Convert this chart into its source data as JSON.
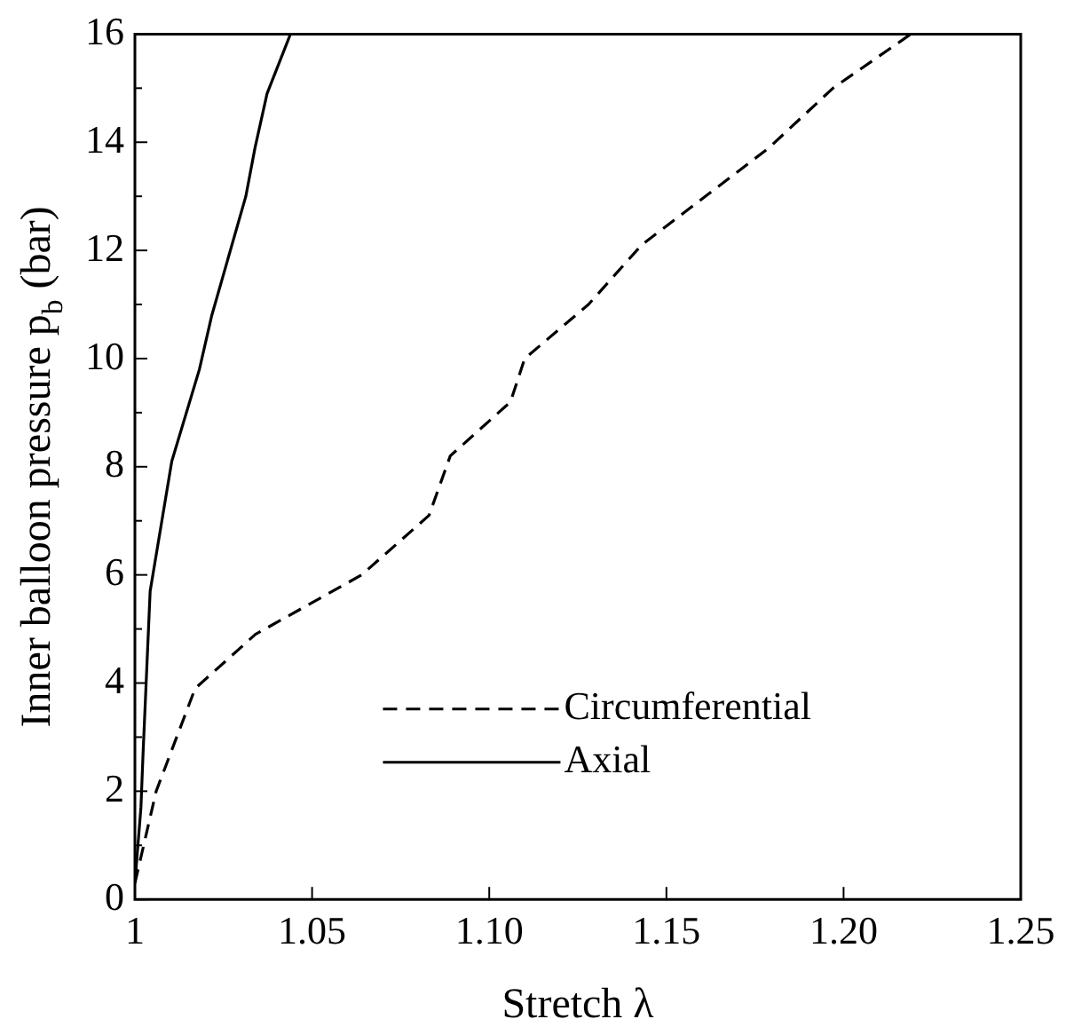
{
  "chart_data": {
    "type": "line",
    "xlabel": "Stretch λ",
    "ylabel": "Inner balloon pressure p$_{b}$ (bar)",
    "xlim": [
      1,
      1.25
    ],
    "xticks": [
      1,
      {
        "value": 1.05,
        "label": "1.05"
      },
      {
        "value": 1.1,
        "label": "1.10"
      },
      {
        "value": 1.15,
        "label": "1.15"
      },
      {
        "value": 1.2,
        "label": "1.20"
      },
      {
        "value": 1.25,
        "label": "1.25"
      }
    ],
    "ylim": [
      0,
      16
    ],
    "yticks": [
      0,
      {
        "value": 1,
        "label": null
      },
      2,
      {
        "value": 3,
        "label": null
      },
      4,
      {
        "value": 5,
        "label": null
      },
      6,
      {
        "value": 7,
        "label": null
      },
      8,
      {
        "value": 9,
        "label": null
      },
      10,
      {
        "value": 11,
        "label": null
      },
      12,
      {
        "value": 13,
        "label": null
      },
      14,
      {
        "value": 15,
        "label": null
      },
      16
    ],
    "grid": false,
    "legend": "bottom right",
    "marker": "none",
    "series": [
      {
        "name": "Circumferential",
        "color": "#000000",
        "line_style": "dashed",
        "x": [
          1,
          1.006,
          1.017,
          1.034,
          1.064,
          1.083,
          1.089,
          1.106,
          1.11,
          1.128,
          1.143,
          1.179,
          1.197,
          1.219
        ],
        "values": [
          0.3,
          2.0,
          3.9,
          4.9,
          6.0,
          7.1,
          8.2,
          9.2,
          10.0,
          11.0,
          12.1,
          13.9,
          15.0,
          16
        ]
      },
      {
        "name": "Axial",
        "color": "#000000",
        "line_style": "solid",
        "x": [
          1,
          1.0017,
          1.0023,
          1.0043,
          1.0104,
          1.0182,
          1.0217,
          1.0313,
          1.0339,
          1.0373,
          1.0439
        ],
        "values": [
          0.3,
          1.7,
          2.7,
          5.7,
          8.1,
          9.8,
          10.8,
          13.0,
          13.9,
          14.9,
          16
        ]
      }
    ]
  }
}
